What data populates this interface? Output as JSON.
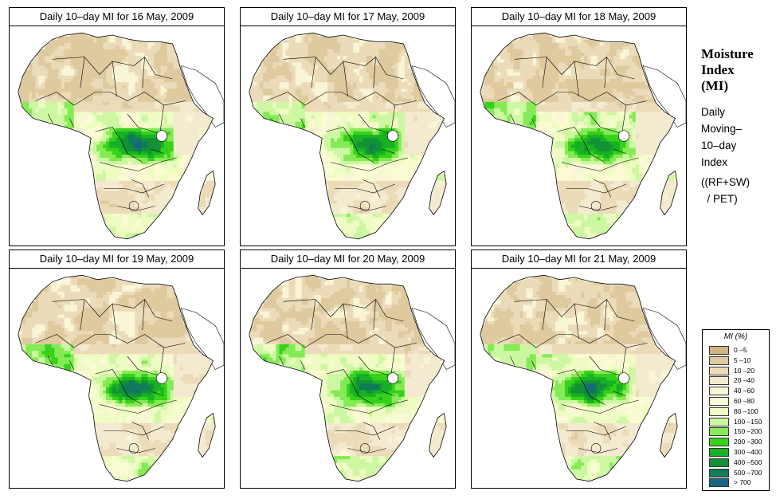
{
  "panels": [
    {
      "title": "Daily 10–day MI for  16 May, 2009",
      "seed": 1
    },
    {
      "title": "Daily 10–day MI for  17 May, 2009",
      "seed": 2
    },
    {
      "title": "Daily 10–day MI for  18 May, 2009",
      "seed": 3
    },
    {
      "title": "Daily 10–day MI for  19 May, 2009",
      "seed": 4
    },
    {
      "title": "Daily 10–day MI for  20 May, 2009",
      "seed": 5
    },
    {
      "title": "Daily 10–day MI for  21 May, 2009",
      "seed": 6
    }
  ],
  "side": {
    "title": [
      "Moisture",
      "Index",
      "(MI)"
    ],
    "desc": [
      "Daily",
      "Moving–",
      "10–day",
      "Index"
    ],
    "formula": [
      "((RF+SW)",
      "  / PET)"
    ]
  },
  "legend": {
    "title": "MI (%)",
    "items": [
      {
        "label": "0 –5",
        "color": "#d2b383"
      },
      {
        "label": "5 –10",
        "color": "#deca9e"
      },
      {
        "label": "10 –20",
        "color": "#ecdbb8"
      },
      {
        "label": "20 –40",
        "color": "#f4ead0"
      },
      {
        "label": "40 –60",
        "color": "#f9f5d7"
      },
      {
        "label": "60 –80",
        "color": "#fbfbd3"
      },
      {
        "label": "80 –100",
        "color": "#eefbc2"
      },
      {
        "label": "100 –150",
        "color": "#cdf7a2"
      },
      {
        "label": "150 –200",
        "color": "#84ea55"
      },
      {
        "label": "200 –300",
        "color": "#36d11a"
      },
      {
        "label": "300 –400",
        "color": "#16b224"
      },
      {
        "label": "400 –500",
        "color": "#139235"
      },
      {
        "label": "500 –700",
        "color": "#0f7b58"
      },
      {
        "label": "> 700",
        "color": "#1b6482"
      }
    ]
  }
}
